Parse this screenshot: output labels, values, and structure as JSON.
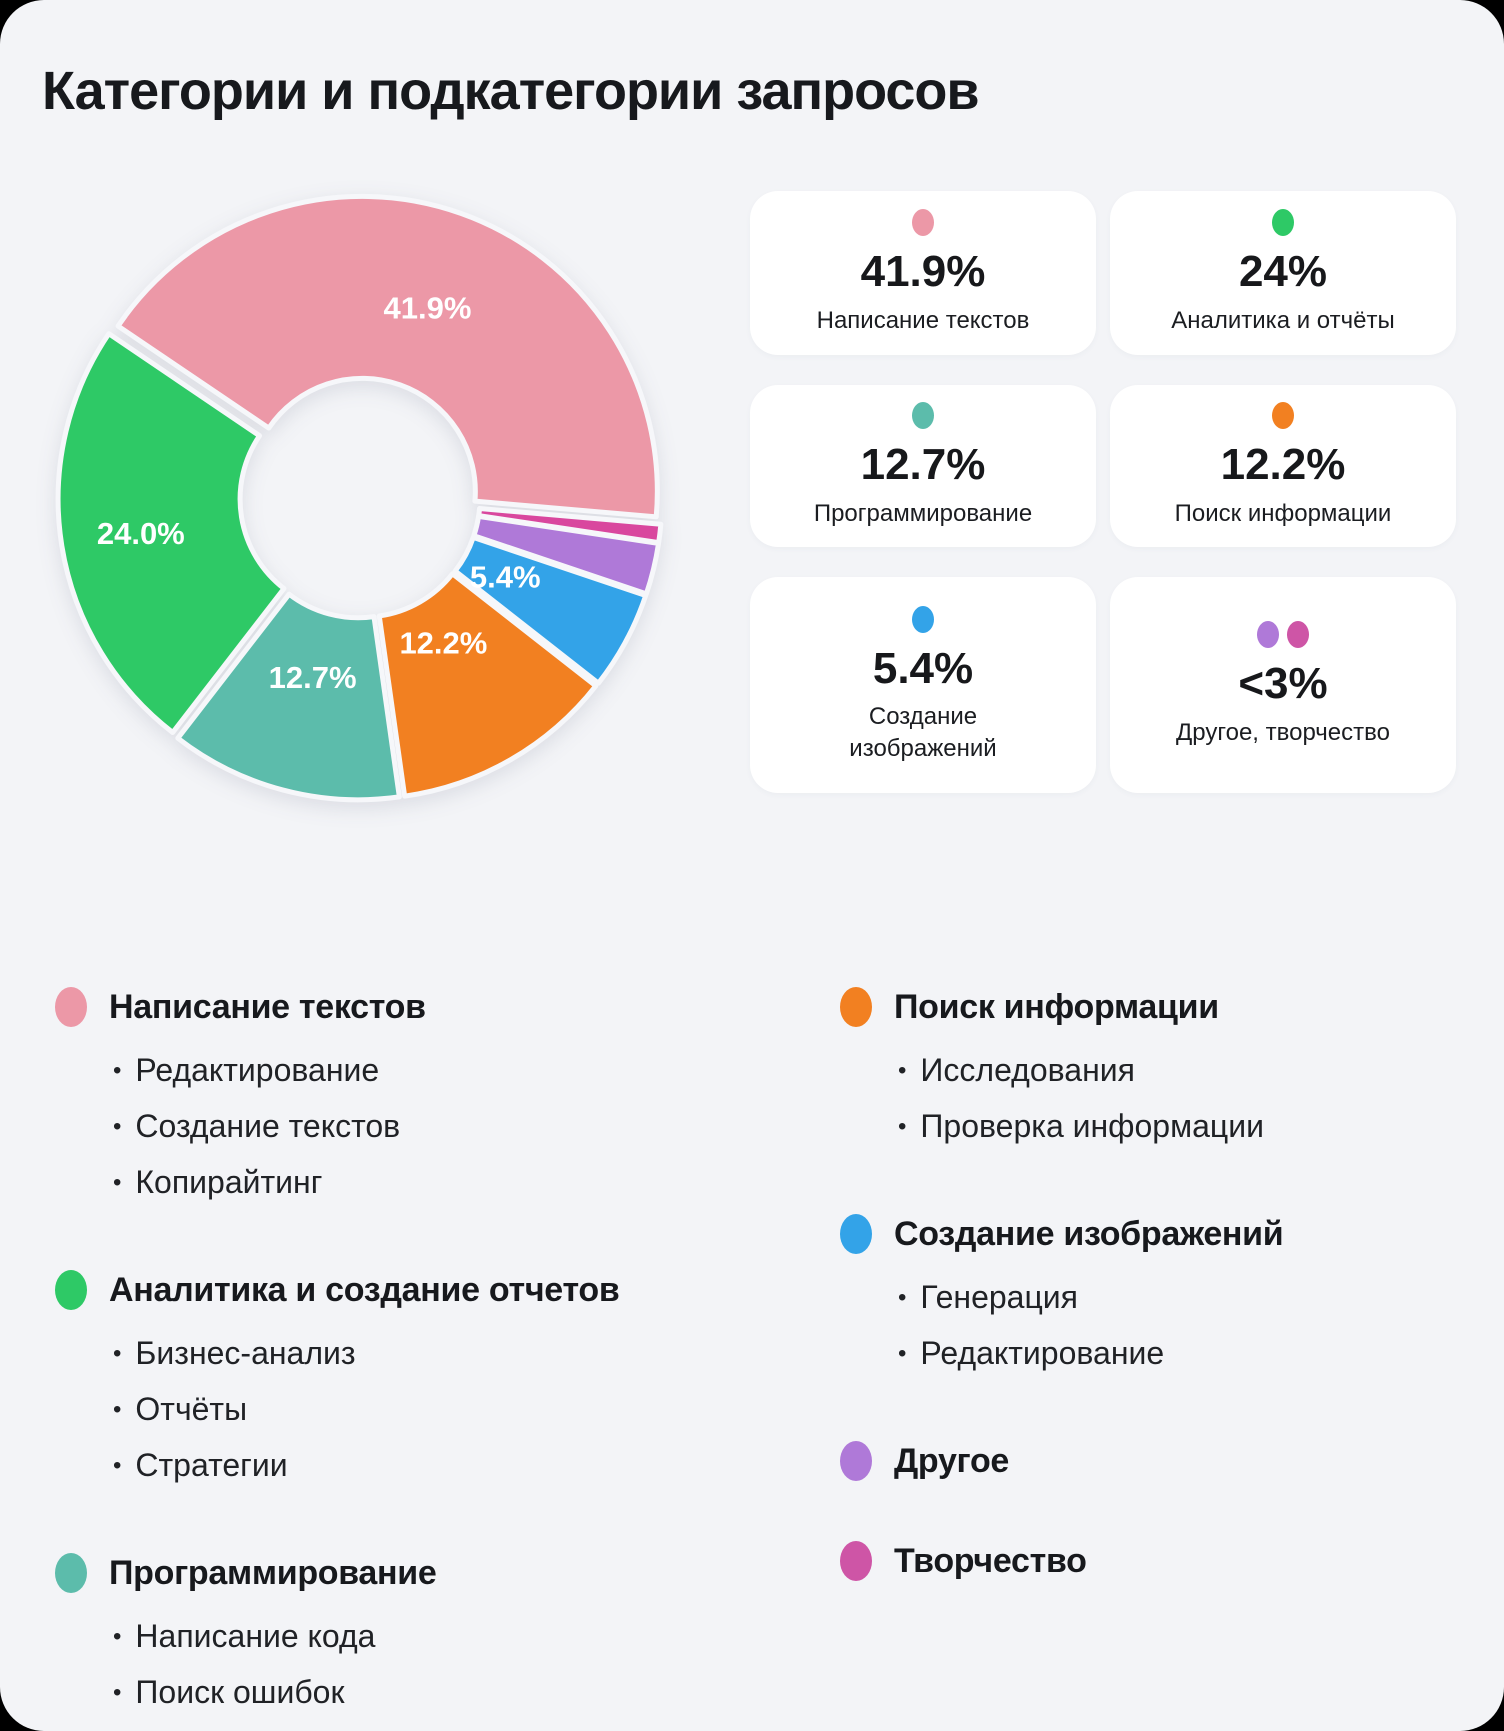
{
  "title": "Категории и подкатегории запросов",
  "cards": [
    {
      "percent": "41.9%",
      "label": "Написание текстов",
      "dot_colors": [
        "#EC98A7"
      ]
    },
    {
      "percent": "24%",
      "label": "Аналитика и отчёты",
      "dot_colors": [
        "#2EC966"
      ]
    },
    {
      "percent": "12.7%",
      "label": "Программирование",
      "dot_colors": [
        "#5CBCAB"
      ]
    },
    {
      "percent": "12.2%",
      "label": "Поиск информации",
      "dot_colors": [
        "#F28021"
      ]
    },
    {
      "percent": "5.4%",
      "label": "Создание\nизображений",
      "dot_colors": [
        "#33A3E8"
      ]
    },
    {
      "percent": "<3%",
      "label": "Другое, творчество",
      "dot_colors": [
        "#AF79D8",
        "#CE55A6"
      ]
    }
  ],
  "chart_data": {
    "type": "pie",
    "subtype": "donut",
    "title": "Категории и подкатегории запросов",
    "units": "%",
    "direction": "clockwise",
    "start_angle_deg": -55.9,
    "hole_ratio": 0.38,
    "grid": false,
    "legend_position": "cards-right-and-list-bottom",
    "segments": [
      {
        "name": "Написание текстов",
        "value": 41.9,
        "display": "41.9%",
        "color": "#EC98A7",
        "label_r": 195
      },
      {
        "name": "Творчество",
        "value": 1.0,
        "display": "",
        "color": "#D9479E",
        "label_r": 0
      },
      {
        "name": "Другое",
        "value": 2.8,
        "display": "",
        "color": "#AF79D8",
        "label_r": 0
      },
      {
        "name": "Создание изображений",
        "value": 5.4,
        "display": "5.4%",
        "color": "#33A3E8",
        "label_r": 158
      },
      {
        "name": "Поиск информации",
        "value": 12.2,
        "display": "12.2%",
        "color": "#F28021",
        "label_r": 160
      },
      {
        "name": "Программирование",
        "value": 12.7,
        "display": "12.7%",
        "color": "#5CBCAB",
        "label_r": 178
      },
      {
        "name": "Аналитика и отчёты",
        "value": 24.0,
        "display": "24.0%",
        "color": "#2EC966",
        "label_r": 215
      }
    ]
  },
  "legend": {
    "left_column": [
      {
        "color": "#EC98A7",
        "title": "Написание текстов",
        "items": [
          "Редактирование",
          "Создание текстов",
          "Копирайтинг"
        ]
      },
      {
        "color": "#2EC966",
        "title": "Аналитика и создание отчетов",
        "items": [
          "Бизнес-анализ",
          "Отчёты",
          "Стратегии"
        ]
      },
      {
        "color": "#5CBCAB",
        "title": "Программирование",
        "items": [
          "Написание кода",
          "Поиск ошибок"
        ]
      }
    ],
    "right_column": [
      {
        "color": "#F28021",
        "title": "Поиск информации",
        "items": [
          "Исследования",
          "Проверка информации"
        ]
      },
      {
        "color": "#33A3E8",
        "title": "Создание изображений",
        "items": [
          "Генерация",
          "Редактирование"
        ]
      },
      {
        "color": "#AF79D8",
        "title": "Другое",
        "items": []
      },
      {
        "color": "#CE55A6",
        "title": "Творчество",
        "items": []
      }
    ]
  }
}
